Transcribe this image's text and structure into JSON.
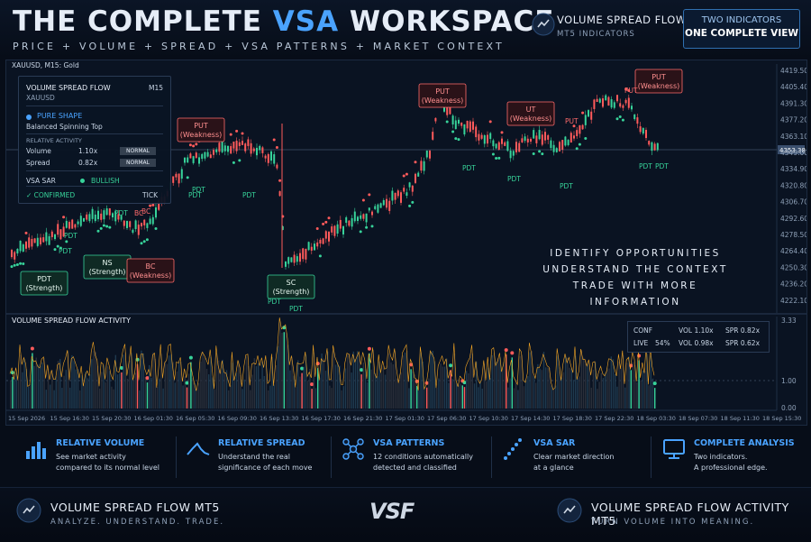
{
  "header": {
    "title_prefix": "THE COMPLETE ",
    "title_accent": "VSA",
    "title_suffix": " WORKSPACE",
    "subtitle": "PRICE + VOLUME + SPREAD + VSA PATTERNS + MARKET CONTEXT",
    "brand_name": "VOLUME SPREAD FLOW",
    "brand_sub": "MT5 INDICATORS",
    "promo_line1": "TWO INDICATORS",
    "promo_line2": "ONE COMPLETE VIEW"
  },
  "chart": {
    "symbol": "XAUUSD, M15: Gold",
    "current_price": "4353.38",
    "price_ticks": [
      "4419.50",
      "4405.40",
      "4391.30",
      "4377.20",
      "4363.10",
      "4349.00",
      "4334.90",
      "4320.80",
      "4306.70",
      "4292.60",
      "4278.50",
      "4264.40",
      "4250.30",
      "4236.20",
      "4222.10"
    ],
    "time_ticks": [
      "15 Sep 2026",
      "15 Sep 16:30",
      "15 Sep 20:30",
      "16 Sep 01:30",
      "16 Sep 05:30",
      "16 Sep 09:30",
      "16 Sep 13:30",
      "16 Sep 17:30",
      "16 Sep 21:30",
      "17 Sep 01:30",
      "17 Sep 06:30",
      "17 Sep 10:30",
      "17 Sep 14:30",
      "17 Sep 18:30",
      "17 Sep 22:30",
      "18 Sep 03:30",
      "18 Sep 07:30",
      "18 Sep 11:30",
      "18 Sep 15:30"
    ],
    "activity_title": "VOLUME SPREAD FLOW ACTIVITY",
    "activity_ticks": [
      "3.33",
      "1.00",
      "0.00"
    ],
    "annotations": [
      {
        "kind": "strength",
        "line1": "PDT",
        "line2": "(Strength)"
      },
      {
        "kind": "strength",
        "line1": "NS",
        "line2": "(Strength)"
      },
      {
        "kind": "weakness",
        "line1": "BC",
        "line2": "(Weakness)"
      },
      {
        "kind": "weakness",
        "line1": "PUT",
        "line2": "(Weakness)"
      },
      {
        "kind": "strength",
        "line1": "SC",
        "line2": "(Strength)"
      },
      {
        "kind": "weakness",
        "line1": "PUT",
        "line2": "(Weakness)"
      },
      {
        "kind": "weakness",
        "line1": "UT",
        "line2": "(Weakness)"
      },
      {
        "kind": "weakness",
        "line1": "PUT",
        "line2": "(Weakness)"
      }
    ],
    "small_labels": [
      "PDT",
      "PDT",
      "BC",
      "PDT",
      "PDT",
      "PDT",
      "PDT",
      "PDT",
      "PDT",
      "PDT",
      "PDT",
      "PUT",
      "PUT",
      "PDT",
      "PDT",
      "BC",
      "PDT"
    ]
  },
  "info_panel": {
    "title": "VOLUME SPREAD FLOW",
    "timeframe": "M15",
    "symbol": "XAUUSD",
    "pattern": "PURE SHAPE",
    "pattern_desc": "Balanced Spinning Top",
    "relative_activity": "RELATIVE ACTIVITY",
    "volume_label": "Volume",
    "volume_value": "1.10x",
    "volume_badge": "NORMAL",
    "spread_label": "Spread",
    "spread_value": "0.82x",
    "spread_badge": "NORMAL",
    "sar_label": "VSA SAR",
    "sar_value": "BULLISH",
    "confirmed": "✓ CONFIRMED",
    "tick": "TICK"
  },
  "overlay_text": [
    "IDENTIFY OPPORTUNITIES",
    "UNDERSTAND THE CONTEXT",
    "TRADE WITH MORE INFORMATION"
  ],
  "stats": {
    "conf": "CONF",
    "live": "LIVE",
    "live_pct": "54%",
    "vol1": "VOL 1.10x",
    "spr1": "SPR 0.82x",
    "vol2": "VOL 0.98x",
    "spr2": "SPR 0.62x"
  },
  "features": [
    {
      "title": "RELATIVE VOLUME",
      "desc1": "See market activity",
      "desc2": "compared to its normal level",
      "icon": "bar-chart-icon"
    },
    {
      "title": "RELATIVE SPREAD",
      "desc1": "Understand the real",
      "desc2": "significance of each move",
      "icon": "wave-icon"
    },
    {
      "title": "VSA PATTERNS",
      "desc1": "12 conditions automatically",
      "desc2": "detected and classified",
      "icon": "network-icon"
    },
    {
      "title": "VSA SAR",
      "desc1": "Clear market direction",
      "desc2": "at a glance",
      "icon": "dots-icon"
    },
    {
      "title": "COMPLETE ANALYSIS",
      "desc1": "Two indicators.",
      "desc2": "A professional edge.",
      "icon": "monitor-icon"
    }
  ],
  "footer": {
    "left_name": "VOLUME SPREAD FLOW MT5",
    "left_tag": "ANALYZE. UNDERSTAND. TRADE.",
    "logo": "VSF",
    "right_name": "VOLUME SPREAD FLOW ACTIVITY MT5",
    "right_tag": "TURN VOLUME INTO MEANING."
  },
  "colors": {
    "accent": "#4aa3ff",
    "bull": "#37d39a",
    "bear": "#ff5b5b",
    "activity_line": "#f5a623"
  }
}
